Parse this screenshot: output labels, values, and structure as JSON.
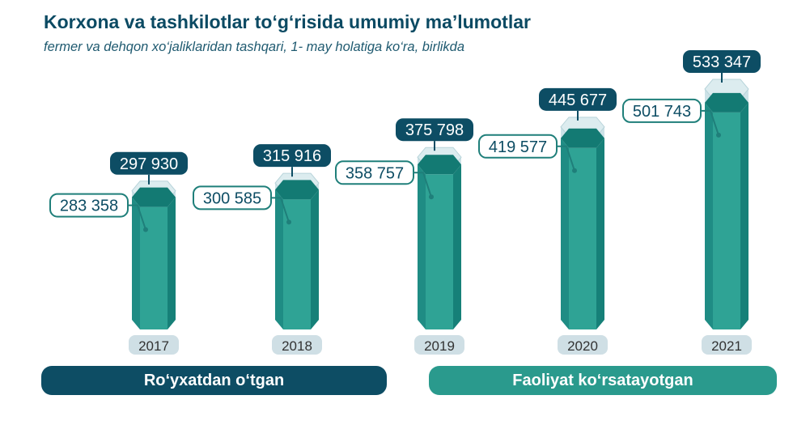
{
  "title": "Korxona va tashkilotlar to‘g‘risida umumiy ma’lumotlar",
  "subtitle": "fermer va dehqon xo‘jaliklaridan tashqari, 1- may holatiga ko‘ra, birlikda",
  "legend": {
    "registered": "Ro‘yxatdan o‘tgan",
    "active": "Faoliyat ko‘rsatayotgan"
  },
  "colors": {
    "registered": "#0d4d64",
    "active": "#2a9a8d",
    "registered_ghost": "#c3dde3",
    "year_pill": "#cfdfe5",
    "label_border": "#1f7f7a"
  },
  "chart_data": {
    "type": "bar",
    "categories": [
      "2017",
      "2018",
      "2019",
      "2020",
      "2021"
    ],
    "series": [
      {
        "name": "Ro‘yxatdan o‘tgan",
        "values": [
          297930,
          315916,
          375798,
          445677,
          533347
        ]
      },
      {
        "name": "Faoliyat ko‘rsatayotgan",
        "values": [
          283358,
          300585,
          358757,
          419577,
          501743
        ]
      }
    ],
    "value_labels": {
      "registered": [
        "297 930",
        "315 916",
        "375 798",
        "445 677",
        "533 347"
      ],
      "active": [
        "283 358",
        "300 585",
        "358 757",
        "419 577",
        "501 743"
      ]
    },
    "legend_position": "bottom"
  }
}
